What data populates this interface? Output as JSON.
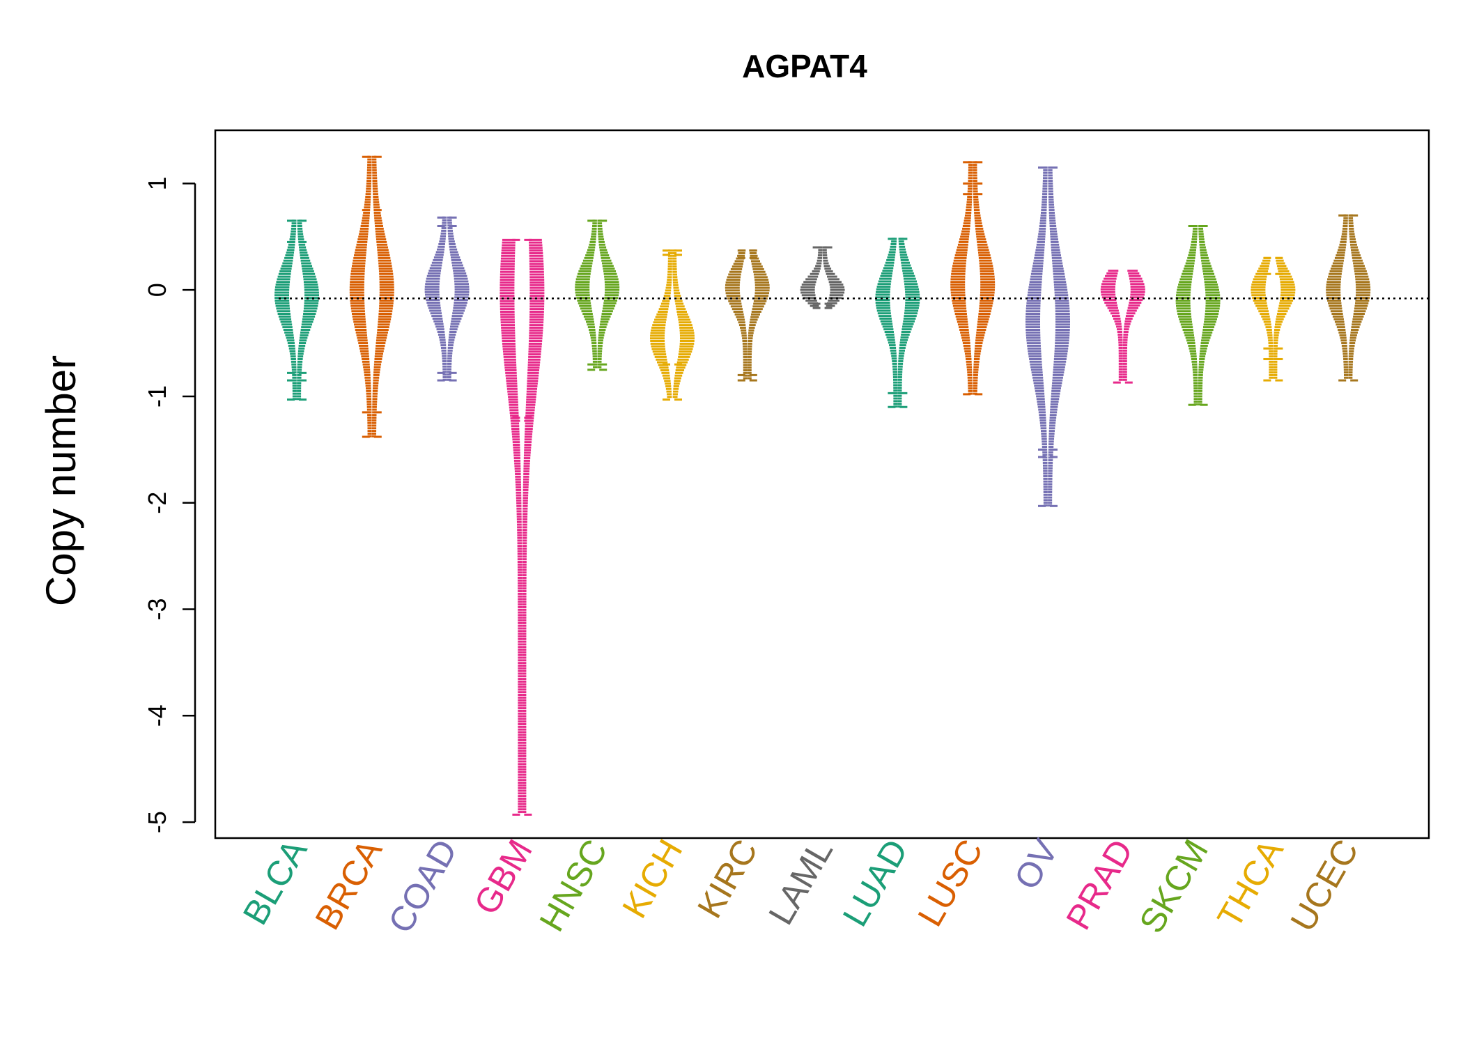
{
  "chart_data": {
    "type": "beeswarm",
    "title": "AGPAT4",
    "xlabel": "",
    "ylabel": "Copy number",
    "ylim": [
      -5.15,
      1.5
    ],
    "yticks": [
      1,
      0,
      -1,
      -2,
      -3,
      -4,
      -5
    ],
    "reference_line": -0.08,
    "categories": [
      "BLCA",
      "BRCA",
      "COAD",
      "GBM",
      "HNSC",
      "KICH",
      "KIRC",
      "LAML",
      "LUAD",
      "LUSC",
      "OV",
      "PRAD",
      "SKCM",
      "THCA",
      "UCEC"
    ],
    "colors": [
      "#1B9E77",
      "#D95F02",
      "#7570B3",
      "#E7298A",
      "#66A61E",
      "#E6AB02",
      "#A6761D",
      "#666666",
      "#1B9E77",
      "#D95F02",
      "#7570B3",
      "#E7298A",
      "#66A61E",
      "#E6AB02",
      "#A6761D"
    ],
    "distributions": [
      {
        "name": "BLCA",
        "min": -1.03,
        "max": 0.65,
        "center": -0.05,
        "extra_points": [
          0.65,
          0.45,
          -0.85,
          -0.78,
          -1.03
        ]
      },
      {
        "name": "BRCA",
        "min": -1.38,
        "max": 1.25,
        "center": 0.0,
        "extra_points": [
          1.25,
          0.75,
          -1.15,
          -1.38
        ]
      },
      {
        "name": "COAD",
        "min": -0.85,
        "max": 0.68,
        "center": 0.0,
        "extra_points": [
          0.68,
          0.6,
          -0.78,
          -0.85
        ]
      },
      {
        "name": "GBM",
        "min": -4.93,
        "max": 0.47,
        "center": -0.02,
        "extra_points": [
          0.47,
          -1.2,
          -1.23,
          -4.93
        ]
      },
      {
        "name": "HNSC",
        "min": -0.75,
        "max": 0.65,
        "center": 0.02,
        "extra_points": [
          0.65,
          -0.7,
          -0.75
        ]
      },
      {
        "name": "KICH",
        "min": -1.03,
        "max": 0.37,
        "center": -0.45,
        "extra_points": [
          0.37,
          0.33,
          -0.7,
          -1.03
        ]
      },
      {
        "name": "KIRC",
        "min": -0.85,
        "max": 0.37,
        "center": 0.02,
        "extra_points": [
          0.37,
          0.3,
          -0.8,
          -0.85
        ]
      },
      {
        "name": "LAML",
        "min": -0.17,
        "max": 0.4,
        "center": 0.0,
        "extra_points": [
          0.4,
          -0.13,
          -0.17
        ]
      },
      {
        "name": "LUAD",
        "min": -1.1,
        "max": 0.48,
        "center": -0.08,
        "extra_points": [
          0.48,
          -0.97,
          -1.1
        ]
      },
      {
        "name": "LUSC",
        "min": -0.98,
        "max": 1.2,
        "center": 0.05,
        "extra_points": [
          1.2,
          1.0,
          0.9,
          -0.98
        ]
      },
      {
        "name": "OV",
        "min": -2.03,
        "max": 1.15,
        "center": -0.3,
        "extra_points": [
          1.15,
          -1.5,
          -1.57,
          -2.03
        ]
      },
      {
        "name": "PRAD",
        "min": -0.87,
        "max": 0.18,
        "center": 0.0,
        "extra_points": [
          -0.87
        ]
      },
      {
        "name": "SKCM",
        "min": -1.08,
        "max": 0.6,
        "center": -0.1,
        "extra_points": [
          0.6,
          -1.08
        ]
      },
      {
        "name": "THCA",
        "min": -0.85,
        "max": 0.3,
        "center": 0.0,
        "extra_points": [
          0.3,
          0.15,
          -0.55,
          -0.65,
          -0.85
        ]
      },
      {
        "name": "UCEC",
        "min": -0.85,
        "max": 0.7,
        "center": 0.0,
        "extra_points": [
          0.7,
          -0.85
        ]
      }
    ]
  }
}
